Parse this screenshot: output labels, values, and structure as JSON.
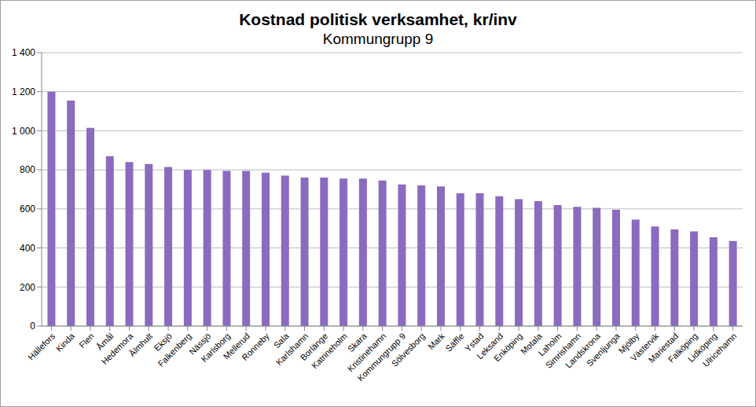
{
  "chart_data": {
    "type": "bar",
    "title": "Kostnad politisk verksamhet, kr/inv",
    "subtitle": "Kommungrupp 9",
    "categories": [
      "Hällefors",
      "Kinda",
      "Flen",
      "Åmål",
      "Hedemora",
      "Älmhult",
      "Eksjö",
      "Falkenberg",
      "Nässjö",
      "Karlsborg",
      "Mellerud",
      "Ronneby",
      "Sala",
      "Karlshamn",
      "Borlänge",
      "Katrineholm",
      "Skara",
      "Kristinehamn",
      "Kommungrupp 9",
      "Sölvesborg",
      "Mark",
      "Säffle",
      "Ystad",
      "Leksand",
      "Enköping",
      "Motala",
      "Laholm",
      "Simrishamn",
      "Landskrona",
      "Svenljunga",
      "Mjölby",
      "Västervik",
      "Mariestad",
      "Falköping",
      "Lidköping",
      "Ulricehamn"
    ],
    "values": [
      1200,
      1155,
      1015,
      870,
      840,
      830,
      815,
      800,
      800,
      795,
      795,
      785,
      770,
      760,
      760,
      755,
      755,
      745,
      725,
      720,
      715,
      680,
      680,
      665,
      650,
      640,
      620,
      610,
      605,
      595,
      545,
      510,
      495,
      485,
      455,
      435
    ],
    "color": "#8a6bbf",
    "ylim": [
      0,
      1400
    ],
    "yticks": [
      0,
      200,
      400,
      600,
      800,
      {
        "value": 1000,
        "label": "1 000"
      },
      {
        "value": 1200,
        "label": "1 200"
      },
      {
        "value": 1400,
        "label": "1 400"
      }
    ],
    "grid": true
  }
}
